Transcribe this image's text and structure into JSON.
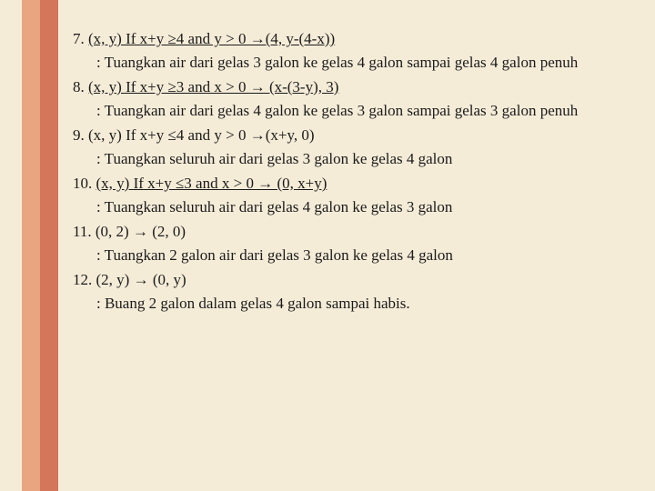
{
  "background_color": "#f5ecd8",
  "stripe_colors": [
    "#e8a580",
    "#d4765a"
  ],
  "text_color": "#1a1a1a",
  "font_family": "Georgia, Times New Roman, serif",
  "font_size": 17,
  "items": [
    {
      "num": "7.",
      "rule": "(x, y) If x+y ≥4 and y > 0 →(4, y-(4-x))",
      "desc": ": Tuangkan air dari gelas 3 galon ke gelas 4 galon   sampai gelas 4 galon penuh",
      "underline_rule": true
    },
    {
      "num": "8.",
      "rule": "(x, y) If x+y ≥3 and x > 0 → (x-(3-y), 3)",
      "desc": ": Tuangkan air dari gelas 4 galon ke gelas 3 galon sampai gelas 3 galon penuh",
      "underline_rule": true
    },
    {
      "num": "9.",
      "rule": "(x, y) If x+y ≤4 and y > 0 →(x+y, 0)",
      "desc": ": Tuangkan seluruh air dari gelas 3 galon ke gelas 4 galon",
      "underline_rule": false
    },
    {
      "num": "10.",
      "rule": "(x, y)  If x+y ≤3 and x > 0 → (0, x+y)",
      "desc": ": Tuangkan seluruh air dari gelas 4 galon ke gelas 3 galon",
      "underline_rule": true
    },
    {
      "num": "11.",
      "rule": "(0, 2) → (2, 0)",
      "desc": ": Tuangkan 2 galon air dari gelas 3 galon ke gelas 4 galon",
      "underline_rule": false
    },
    {
      "num": "12.",
      "rule": "(2, y) → (0, y)",
      "desc": ": Buang 2 galon dalam gelas 4 galon sampai habis.",
      "underline_rule": false
    }
  ]
}
